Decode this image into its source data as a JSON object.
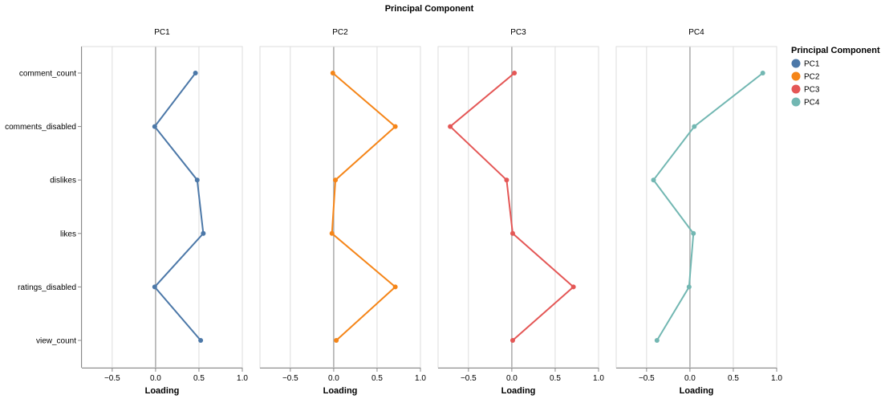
{
  "chart_data": {
    "type": "line",
    "title": "Principal Component",
    "xlabel": "Loading",
    "ylabel": "",
    "xlim": [
      -0.85,
      1.0
    ],
    "x_ticks": [
      -0.5,
      0,
      0.5,
      1
    ],
    "x_tick_labels": [
      "−0.5",
      "0.0",
      "0.5",
      "1.0"
    ],
    "categories": [
      "comment_count",
      "comments_disabled",
      "dislikes",
      "likes",
      "ratings_disabled",
      "view_count"
    ],
    "grid": true,
    "legend": {
      "title": "Principal Component",
      "placement": "top-right"
    },
    "series": [
      {
        "name": "PC1",
        "color": "#4c78a8",
        "values": [
          0.46,
          -0.01,
          0.48,
          0.55,
          -0.01,
          0.52
        ]
      },
      {
        "name": "PC2",
        "color": "#f58518",
        "values": [
          -0.01,
          0.71,
          0.02,
          -0.02,
          0.71,
          0.03
        ]
      },
      {
        "name": "PC3",
        "color": "#e45756",
        "values": [
          0.03,
          -0.71,
          -0.06,
          0.01,
          0.71,
          0.01
        ]
      },
      {
        "name": "PC4",
        "color": "#72b7b2",
        "values": [
          0.84,
          0.05,
          -0.42,
          0.04,
          -0.01,
          -0.38
        ]
      }
    ]
  }
}
